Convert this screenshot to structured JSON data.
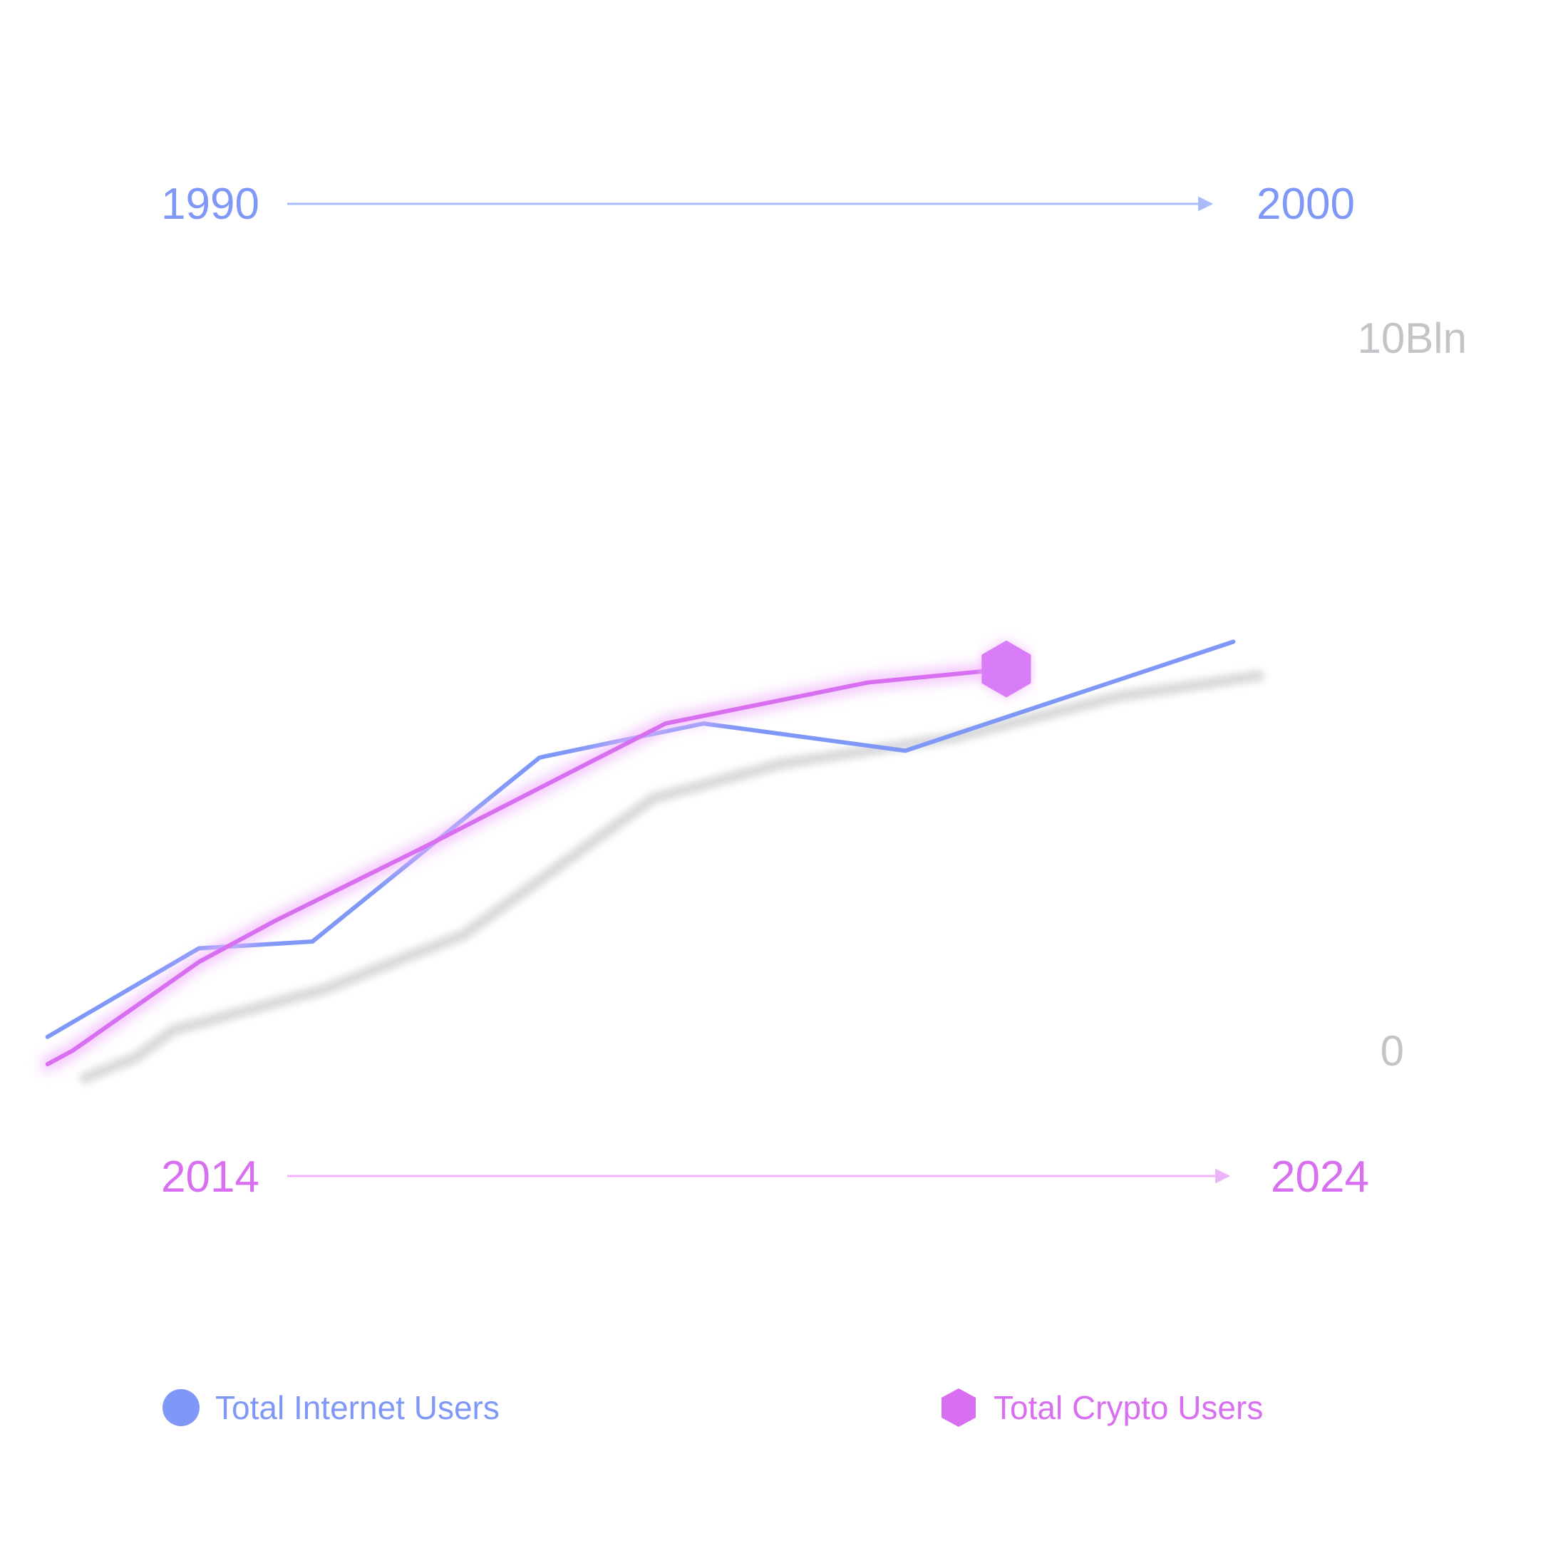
{
  "chart_data": {
    "type": "line",
    "x_axis_top": {
      "start": "1990",
      "end": "2000",
      "color": "#7f98f8"
    },
    "x_axis_bottom": {
      "start": "2014",
      "end": "2024",
      "color": "#d86ff0"
    },
    "y_axis": {
      "max_label": "10Bln",
      "min_label": "0"
    },
    "grid": true,
    "legend_position": "bottom",
    "series": [
      {
        "name": "Total Internet Users",
        "color": "#7f98f8",
        "marker": "circle",
        "points": [
          [
            -0.9,
            1.1
          ],
          [
            0.3,
            2.4
          ],
          [
            1.2,
            2.5
          ],
          [
            3.0,
            5.2
          ],
          [
            4.3,
            5.7
          ],
          [
            5.9,
            5.3
          ],
          [
            8.5,
            6.9
          ]
        ]
      },
      {
        "name": "Total Crypto Users",
        "color": "#d86ff0",
        "marker": "hexagon",
        "points": [
          [
            -0.9,
            0.7
          ],
          [
            -0.7,
            0.9
          ],
          [
            0.3,
            2.2
          ],
          [
            0.9,
            2.8
          ],
          [
            2.1,
            3.9
          ],
          [
            4.0,
            5.7
          ],
          [
            5.6,
            6.3
          ],
          [
            6.7,
            6.5
          ]
        ]
      },
      {
        "name": "shadow",
        "color": "#d5d5d8",
        "marker": "none",
        "points": [
          [
            -0.6,
            0.5
          ],
          [
            -0.2,
            0.8
          ],
          [
            0.1,
            1.2
          ],
          [
            1.3,
            1.8
          ],
          [
            2.4,
            2.6
          ],
          [
            3.9,
            4.6
          ],
          [
            4.9,
            5.1
          ],
          [
            6.3,
            5.5
          ],
          [
            7.6,
            6.1
          ],
          [
            8.7,
            6.4
          ]
        ]
      }
    ]
  }
}
